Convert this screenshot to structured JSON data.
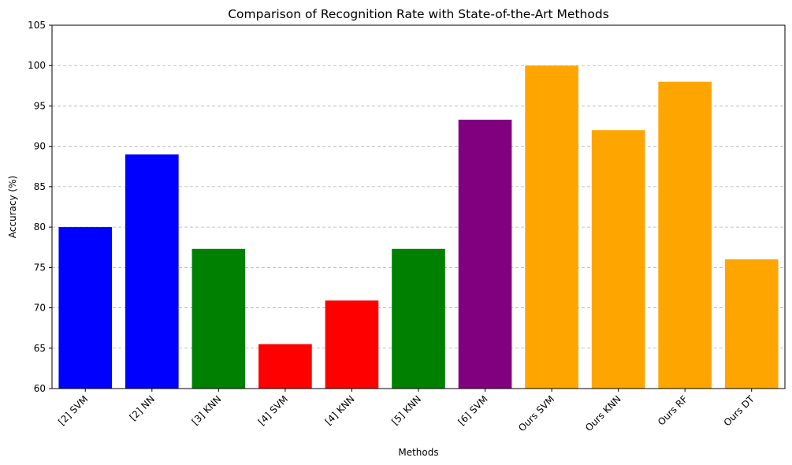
{
  "chart_data": {
    "type": "bar",
    "title": "Comparison of Recognition Rate with State-of-the-Art Methods",
    "xlabel": "Methods",
    "ylabel": "Accuracy (%)",
    "ylim": [
      60,
      105
    ],
    "yticks": [
      "60",
      "65",
      "70",
      "75",
      "80",
      "85",
      "90",
      "95",
      "100",
      "105"
    ],
    "grid": "y-dashed",
    "categories": [
      "[2] SVM",
      "[2] NN",
      "[3] KNN",
      "[4] SVM",
      "[4] KNN",
      "[5] KNN",
      "[6] SVM",
      "Ours SVM",
      "Ours KNN",
      "Ours RF",
      "Ours DT"
    ],
    "values": [
      80,
      89,
      77.3,
      65.5,
      70.9,
      77.3,
      93.3,
      100,
      92,
      98,
      76
    ],
    "colors": [
      "#0000ff",
      "#0000ff",
      "#008000",
      "#ff0000",
      "#ff0000",
      "#008000",
      "#800080",
      "#ffa500",
      "#ffa500",
      "#ffa500",
      "#ffa500"
    ]
  }
}
